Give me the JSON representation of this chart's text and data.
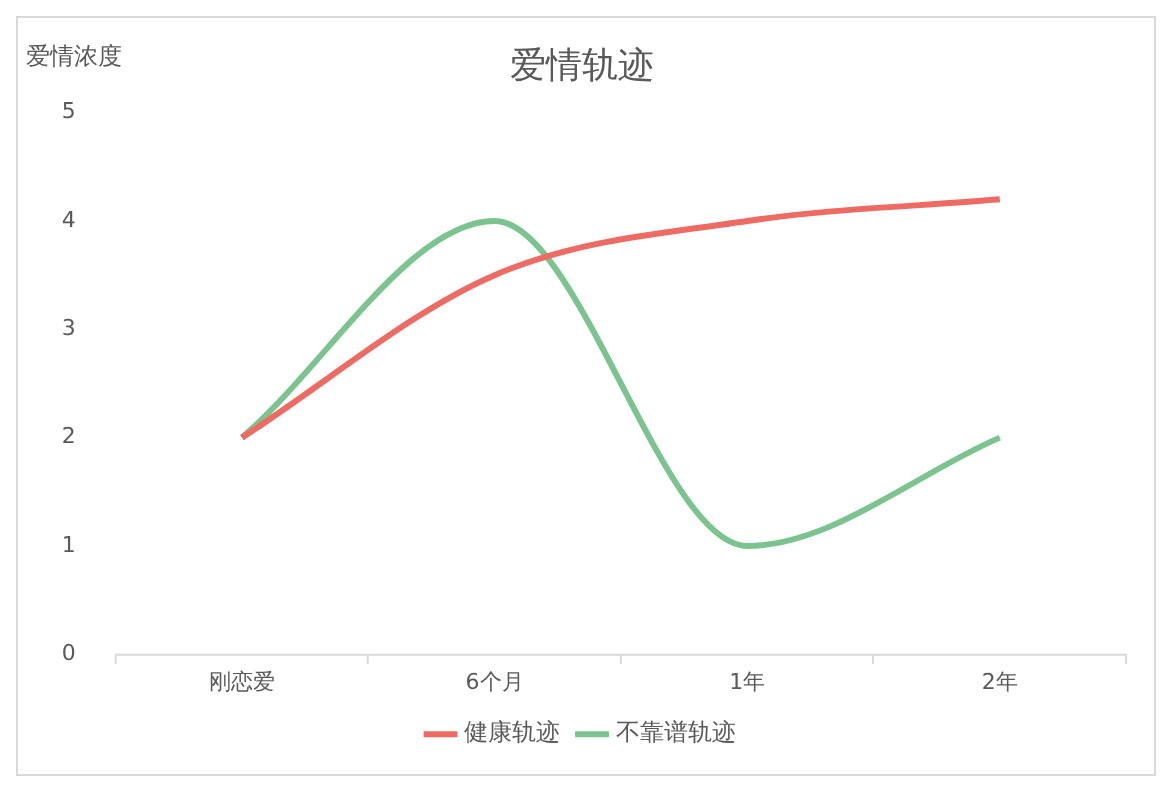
{
  "chart_data": {
    "type": "line",
    "title": "爱情轨迹",
    "ylabel": "爱情浓度",
    "categories": [
      "刚恋爱",
      "6个月",
      "1年",
      "2年"
    ],
    "series": [
      {
        "name": "健康轨迹",
        "color": "#ee6b63",
        "values": [
          2,
          3.5,
          4,
          4.2
        ]
      },
      {
        "name": "不靠谱轨迹",
        "color": "#7cc48f",
        "values": [
          2,
          4,
          1,
          2
        ]
      }
    ],
    "ylim": [
      0,
      5
    ],
    "yticks": [
      0,
      1,
      2,
      3,
      4,
      5
    ],
    "grid": false,
    "legend": "bottom",
    "marker": "none",
    "line_style": "solid"
  }
}
